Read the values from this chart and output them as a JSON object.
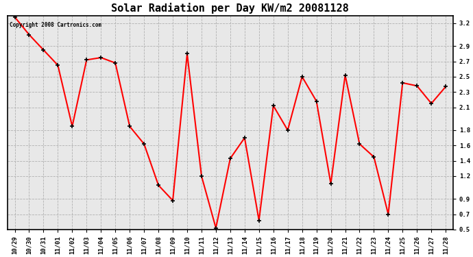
{
  "title": "Solar Radiation per Day KW/m2 20081128",
  "copyright_text": "Copyright 2008 Cartronics.com",
  "x_labels": [
    "10/29",
    "10/30",
    "10/31",
    "11/01",
    "11/02",
    "11/03",
    "11/04",
    "11/05",
    "11/06",
    "11/07",
    "11/08",
    "11/09",
    "11/10",
    "11/11",
    "11/12",
    "11/13",
    "11/14",
    "11/15",
    "11/16",
    "11/17",
    "11/18",
    "11/19",
    "11/20",
    "11/21",
    "11/22",
    "11/23",
    "11/24",
    "11/25",
    "11/26",
    "11/27",
    "11/28"
  ],
  "y_values": [
    3.28,
    3.05,
    2.85,
    2.65,
    1.85,
    2.72,
    2.75,
    2.68,
    1.85,
    1.62,
    1.08,
    0.88,
    2.8,
    1.2,
    0.52,
    1.43,
    1.7,
    0.62,
    2.12,
    1.8,
    2.5,
    2.18,
    1.1,
    2.52,
    1.62,
    1.45,
    0.7,
    2.42,
    2.38,
    2.15,
    2.37
  ],
  "line_color": "#ff0000",
  "marker": "+",
  "marker_size": 5,
  "marker_color": "#000000",
  "bg_color": "#ffffff",
  "plot_bg_color": "#e8e8e8",
  "grid_color": "#b0b0b0",
  "ylim": [
    0.5,
    3.3
  ],
  "yticks": [
    0.5,
    0.7,
    0.9,
    1.2,
    1.4,
    1.6,
    1.8,
    2.1,
    2.3,
    2.5,
    2.7,
    2.9,
    3.2
  ],
  "title_fontsize": 11,
  "tick_fontsize": 6.5,
  "line_width": 1.5,
  "fig_width": 6.9,
  "fig_height": 3.75
}
